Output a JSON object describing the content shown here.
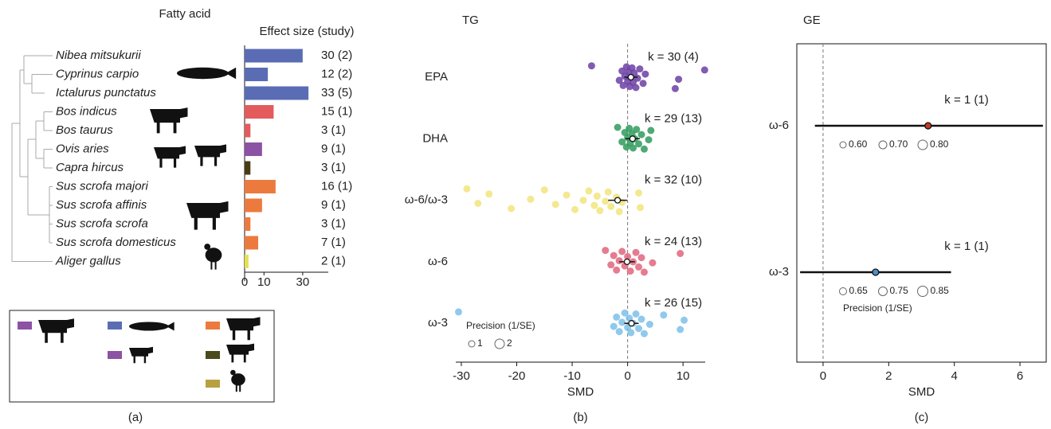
{
  "chart_data": [
    {
      "type": "bar",
      "panel_label": "(a)",
      "title": "Fatty acid",
      "subtitle": "Effect size (study)",
      "categories": [
        "Nibea mitsukurii",
        "Cyprinus carpio",
        "Ictalurus punctatus",
        "Bos indicus",
        "Bos taurus",
        "Ovis aries",
        "Capra hircus",
        "Sus scrofa majori",
        "Sus scrofa affinis",
        "Sus scrofa scrofa",
        "Sus scrofa domesticus",
        "Aliger gallus"
      ],
      "values": [
        30,
        12,
        33,
        15,
        3,
        9,
        3,
        16,
        9,
        3,
        7,
        2
      ],
      "value_labels": [
        "30 (2)",
        "12 (2)",
        "33 (5)",
        "15 (1)",
        "3 (1)",
        "9 (1)",
        "3 (1)",
        "16 (1)",
        "9 (1)",
        "3 (1)",
        "7 (1)",
        "2 (1)"
      ],
      "colors": [
        "#5a6db4",
        "#5a6db4",
        "#5a6db4",
        "#e35b5d",
        "#e35b5d",
        "#8c52a3",
        "#4a3b14",
        "#ec7a3e",
        "#ec7a3e",
        "#ec7a3e",
        "#ec7a3e",
        "#e7e04e"
      ],
      "xlim": [
        0,
        35
      ],
      "xticks": [
        0,
        10,
        30
      ]
    },
    {
      "type": "forest",
      "panel_label": "(b)",
      "title": "TG",
      "xlabel": "SMD",
      "categories": [
        "EPA",
        "DHA",
        "ω-6/ω-3",
        "ω-6",
        "ω-3"
      ],
      "estimates": [
        0.6,
        0.9,
        -1.8,
        -0.1,
        0.7
      ],
      "ci_low": [
        -0.6,
        -0.4,
        -3.5,
        -1.5,
        -0.6
      ],
      "ci_high": [
        1.8,
        2.2,
        -0.1,
        1.3,
        2.0
      ],
      "k_labels": [
        "k = 30 (4)",
        "k = 29 (13)",
        "k = 32 (10)",
        "k = 24 (13)",
        "k = 26 (15)"
      ],
      "colors": [
        "#6b3fa3",
        "#2f9b5c",
        "#f2e47c",
        "#e0657c",
        "#7dbfe9"
      ],
      "points": [
        [
          -6.5,
          -1.5,
          -1,
          -0.8,
          -0.5,
          -0.2,
          0,
          0.2,
          0.4,
          0.6,
          0.8,
          1,
          1.2,
          1.5,
          1.8,
          2.2,
          2.8,
          3.2,
          8.6,
          9.2,
          13.9
        ],
        [
          -1.8,
          -1,
          -0.5,
          -0.2,
          0,
          0.3,
          0.5,
          0.8,
          1,
          1.3,
          1.6,
          2,
          2.5,
          3,
          3.8,
          4.2
        ],
        [
          -29,
          -27,
          -25,
          -21,
          -17.5,
          -15,
          -13,
          -11,
          -9.5,
          -8,
          -7,
          -6,
          -5.5,
          -5,
          -4,
          -3.5,
          -3,
          -2,
          -1.5,
          -1,
          2,
          2.3
        ],
        [
          -4,
          -3,
          -2.5,
          -2,
          -1.5,
          -1,
          -0.5,
          0,
          0.5,
          1,
          1.5,
          2,
          2.5,
          3,
          4.5,
          9.5
        ],
        [
          -30.5,
          -2.5,
          -2,
          -1.5,
          -1,
          -0.5,
          0,
          0.3,
          0.6,
          1,
          1.5,
          2,
          2.5,
          3,
          4,
          6.5,
          9.5,
          10.2
        ]
      ],
      "xlim": [
        -31,
        14
      ],
      "xticks": [
        -30,
        -20,
        -10,
        0,
        10
      ],
      "frame": false,
      "size_legend_title": "Precision (1/SE)",
      "size_legend": [
        1,
        2
      ]
    },
    {
      "type": "forest",
      "panel_label": "(c)",
      "title": "GE",
      "xlabel": "SMD",
      "categories": [
        "ω-6",
        "ω-3"
      ],
      "estimates": [
        3.2,
        1.6
      ],
      "ci_low": [
        -0.25,
        -0.7
      ],
      "ci_high": [
        6.7,
        3.9
      ],
      "k_labels": [
        "k = 1 (1)",
        "k = 1 (1)"
      ],
      "colors": [
        "#c0392b",
        "#4a90c8"
      ],
      "xlim": [
        -0.8,
        6.8
      ],
      "xticks": [
        0,
        2,
        4,
        6
      ],
      "frame": true,
      "size_legend_title": "Precision (1/SE)",
      "row_size_legends": [
        [
          {
            "value": 0.6,
            "label": "0.60"
          },
          {
            "value": 0.7,
            "label": "0.70"
          },
          {
            "value": 0.8,
            "label": "0.80"
          }
        ],
        [
          {
            "value": 0.65,
            "label": "0.65"
          },
          {
            "value": 0.75,
            "label": "0.75"
          },
          {
            "value": 0.85,
            "label": "0.85"
          }
        ]
      ]
    }
  ]
}
